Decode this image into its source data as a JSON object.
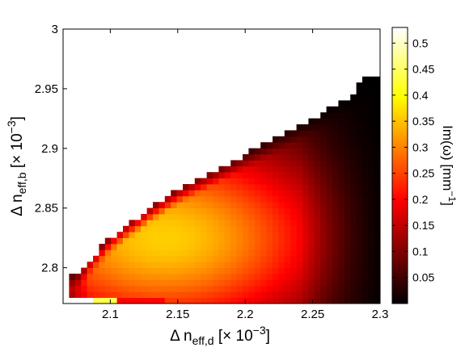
{
  "chart_data": {
    "type": "heatmap",
    "title": "",
    "colormap": "hot",
    "xlim": [
      2.065,
      2.3
    ],
    "ylim": [
      2.77,
      3.0
    ],
    "x_ticks": [
      "2.1",
      "2.15",
      "2.2",
      "2.25",
      "2.3"
    ],
    "y_ticks": [
      "2.8",
      "2.85",
      "2.9",
      "2.95",
      "3"
    ],
    "xlabel": {
      "base": "Δ n",
      "sub": "eff,d",
      "mid": " [× 10",
      "sup": "−3",
      "end": "]"
    },
    "ylabel": {
      "base": "Δ n",
      "sub": "eff,b",
      "mid": " [× 10",
      "sup": "−3",
      "end": "]"
    },
    "colorbar": {
      "range": [
        0,
        0.53
      ],
      "ticks": [
        "0.05",
        "0.1",
        "0.15",
        "0.2",
        "0.25",
        "0.3",
        "0.35",
        "0.4",
        "0.45",
        "0.5"
      ],
      "label": {
        "base": "Im(ω) [mm",
        "sup": "−1",
        "end": "]"
      }
    },
    "grid": false,
    "upper_boundary": [
      [
        2.075,
        2.795
      ],
      [
        2.1,
        2.825
      ],
      [
        2.13,
        2.85
      ],
      [
        2.15,
        2.865
      ],
      [
        2.175,
        2.88
      ],
      [
        2.2,
        2.895
      ],
      [
        2.225,
        2.91
      ],
      [
        2.25,
        2.925
      ],
      [
        2.28,
        2.945
      ],
      [
        2.29,
        2.962
      ],
      [
        2.3,
        2.962
      ]
    ],
    "lower_edge_y": 2.77,
    "peak": {
      "x": 2.14,
      "y": 2.825,
      "value": 0.36
    },
    "value_range_in_field": [
      0.0,
      0.53
    ]
  }
}
